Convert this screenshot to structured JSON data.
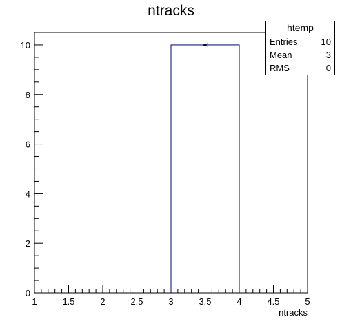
{
  "chart_data": {
    "type": "bar",
    "title": "ntracks",
    "xlabel": "ntracks",
    "ylabel": "",
    "xlim": [
      1,
      5
    ],
    "ylim": [
      0,
      10.5
    ],
    "x_ticks": [
      "1",
      "1.5",
      "2",
      "2.5",
      "3",
      "3.5",
      "4",
      "4.5",
      "5"
    ],
    "y_ticks": [
      "0",
      "2",
      "4",
      "6",
      "8",
      "10"
    ],
    "bins": [
      {
        "low": 3,
        "high": 4,
        "value": 10
      }
    ],
    "marker": {
      "x": 3.5,
      "y": 10,
      "symbol": "*"
    },
    "grid": false,
    "line_color": "#00007f"
  },
  "stats_box": {
    "title": "htemp",
    "rows": [
      {
        "label": "Entries",
        "value": "10"
      },
      {
        "label": "Mean",
        "value": "3"
      },
      {
        "label": "RMS",
        "value": "0"
      }
    ]
  }
}
